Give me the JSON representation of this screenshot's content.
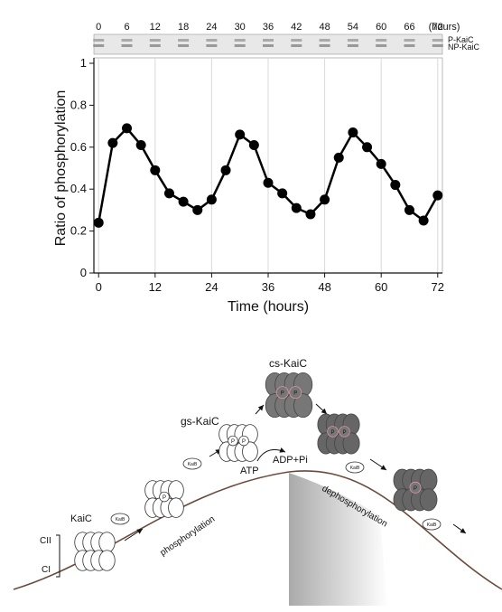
{
  "chart_data": {
    "type": "line",
    "x_label": "Time (hours)",
    "y_label": "Ratio of phosphorylation",
    "x": [
      0,
      3,
      6,
      9,
      12,
      15,
      18,
      21,
      24,
      27,
      30,
      33,
      36,
      39,
      42,
      45,
      48,
      51,
      54,
      57,
      60,
      63,
      66,
      69,
      72
    ],
    "series": [
      {
        "color": "#000000",
        "values": [
          0.24,
          0.62,
          0.69,
          0.61,
          0.49,
          0.38,
          0.34,
          0.3,
          0.35,
          0.49,
          0.66,
          0.61,
          0.43,
          0.38,
          0.31,
          0.28,
          0.35,
          0.55,
          0.67,
          0.6,
          0.52,
          0.42,
          0.3,
          0.25,
          0.37
        ]
      }
    ],
    "xlim": [
      -1,
      73
    ],
    "ylim": [
      0,
      1
    ],
    "xticks": [
      0,
      12,
      24,
      36,
      48,
      60,
      72
    ],
    "yticks": [
      0,
      0.2,
      0.4,
      0.6,
      0.8,
      1
    ],
    "grid": true,
    "gel_hours": [
      0,
      6,
      12,
      18,
      24,
      30,
      36,
      42,
      48,
      54,
      60,
      66,
      72
    ],
    "gel_hours_unit": "(hours)",
    "gel_bands": [
      "P-KaiC",
      "NP-KaiC"
    ]
  },
  "diagram": {
    "kaic": "KaiC",
    "cii": "CII",
    "ci": "CI",
    "kaib": "KaiB",
    "gs_kaic": "gs-KaiC",
    "cs_kaic": "cs-KaiC",
    "atp": "ATP",
    "adp": "ADP+Pi",
    "phosphorylation": "phosphorylation",
    "dephosphorylation": "dephosphorylation",
    "phosphate": "P"
  }
}
